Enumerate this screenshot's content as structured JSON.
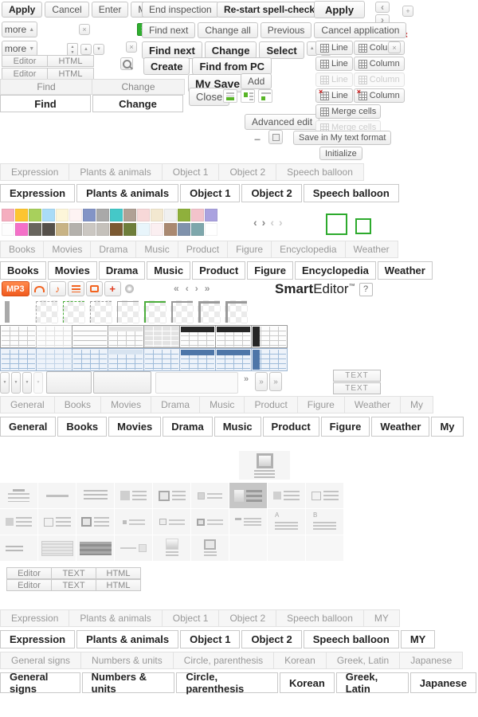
{
  "buttons": {
    "apply": "Apply",
    "cancel": "Cancel",
    "enter": "Enter",
    "modify": "Modify",
    "more": "more",
    "end_inspection": "End inspection",
    "restart_spellcheck": "Re-start spell-check",
    "apply2": "Apply",
    "find_next": "Find next",
    "change_all": "Change all",
    "previous": "Previous",
    "cancel_application": "Cancel application",
    "find_next_b": "Find next",
    "change_b": "Change",
    "select_b": "Select",
    "create": "Create",
    "find_from_pc": "Find from PC",
    "my_save": "My Save",
    "add": "Add",
    "close": "Close",
    "advanced_edit": "Advanced edit",
    "save_my_text": "Save in My text format",
    "initialize": "Initialize",
    "line": "Line",
    "column": "Column",
    "merge_cells": "Merge cells",
    "editor": "Editor",
    "html": "HTML",
    "text": "TEXT",
    "find": "Find",
    "change": "Change",
    "mp3": "MP3"
  },
  "icons": {
    "close": "×",
    "plus": "+",
    "minus": "−",
    "up": "▲",
    "down": "▼",
    "left": "‹",
    "right": "›",
    "first": "«",
    "last": "»",
    "help": "?",
    "note": "♪",
    "quote": "“"
  },
  "brand": {
    "smart": "Smart",
    "editor": "Editor",
    "tm": "™"
  },
  "tabs_sticker": [
    "Expression",
    "Plants & animals",
    "Object 1",
    "Object 2",
    "Speech balloon"
  ],
  "tabs_sticker_my": [
    "Expression",
    "Plants & animals",
    "Object 1",
    "Object 2",
    "Speech balloon",
    "MY"
  ],
  "tabs_media": [
    "Books",
    "Movies",
    "Drama",
    "Music",
    "Product",
    "Figure",
    "Encyclopedia",
    "Weather"
  ],
  "tabs_general": [
    "General",
    "Books",
    "Movies",
    "Drama",
    "Music",
    "Product",
    "Figure",
    "Weather",
    "My"
  ],
  "tabs_chars": [
    "General signs",
    "Numbers & units",
    "Circle, parenthesis",
    "Korean",
    "Greek, Latin",
    "Japanese"
  ],
  "editor_tabs": [
    "Editor",
    "TEXT",
    "HTML"
  ],
  "palette_row1": [
    "#f5aebf",
    "#fdc531",
    "#a8d05c",
    "#aadcf7",
    "#fdf6d9",
    "#fef3f3",
    "#8394c6",
    "#a9a9a9",
    "#45c8c8",
    "#b0a195",
    "#f7d8d8",
    "#f3e8d0",
    "#f0f0f0",
    "#8fb03c",
    "#f3c3cb",
    "#aaa2df"
  ],
  "palette_row2": [
    "#fdfdfd",
    "#f470c8",
    "#68655e",
    "#55504a",
    "#c8b385",
    "#b4b1ac",
    "#cbc7c2",
    "#c5c1bb",
    "#7c5a32",
    "#6e7e3a",
    "#e8f5fb",
    "#fbeff1",
    "#aa8971",
    "#8092ac",
    "#7ea7ac",
    "#ffffff"
  ],
  "border_styles": [
    "vbar",
    "quote",
    "dash",
    "dash-green",
    "dash-checker",
    "solid",
    "solid-green",
    "solid-checker",
    "thick",
    "thick-checker"
  ],
  "table_gray": [
    "g1",
    "g2",
    "g3",
    "g4",
    "g5",
    "g6",
    "g7",
    "g8"
  ],
  "table_blue": [
    "b1",
    "b2",
    "b3",
    "b4",
    "b5",
    "b6",
    "b7",
    "b8"
  ],
  "grid_icons": [
    "hcenter",
    "line1",
    "lines4",
    "imglines",
    "imgflines",
    "smsq",
    "imgdark",
    "sq4",
    "framew4",
    "sq4",
    "framew4",
    "frameb4",
    "tiny2",
    "smf2",
    "smf2b",
    "dash3",
    "alines",
    "blines",
    "twolines",
    "boxlines",
    "boxdark",
    "linesq",
    "imgstack",
    "imgfstack",
    "empty",
    "empty",
    "empty"
  ]
}
